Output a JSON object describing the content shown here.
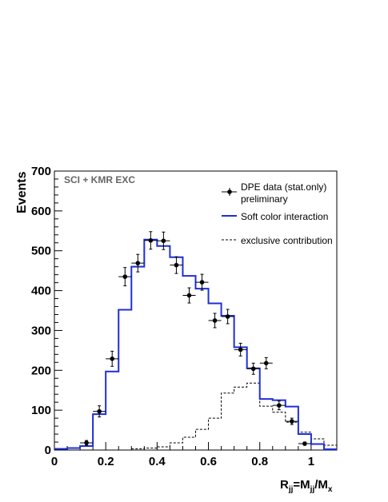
{
  "chart_data": {
    "type": "histogram",
    "title": "",
    "ylabel": "Events",
    "xlabel": {
      "main": "R",
      "main_sub": "jj",
      "eq": "=M",
      "eq_sub": "jj",
      "slash": "/M",
      "slash_sub": "x"
    },
    "xlim": [
      0,
      1.1
    ],
    "ylim": [
      0,
      700
    ],
    "x_ticks": [
      0,
      0.2,
      0.4,
      0.6,
      0.8,
      1
    ],
    "x_tick_labels": [
      "0",
      "0.2",
      "0.4",
      "0.6",
      "0.8",
      "1"
    ],
    "y_ticks": [
      0,
      100,
      200,
      300,
      400,
      500,
      600,
      700
    ],
    "y_tick_labels": [
      "0",
      "100",
      "200",
      "300",
      "400",
      "500",
      "600",
      "700"
    ],
    "annotation": "SCI + KMR EXC",
    "legend": {
      "placement": "top-right",
      "entries": [
        {
          "label": "DPE data (stat.only)",
          "label2": "preliminary",
          "style": "marker"
        },
        {
          "label": "Soft color interaction",
          "style": "line"
        },
        {
          "label": "exclusive contribution",
          "style": "dashed"
        }
      ]
    },
    "bin_edges": [
      0,
      0.05,
      0.1,
      0.15,
      0.2,
      0.25,
      0.3,
      0.35,
      0.4,
      0.45,
      0.5,
      0.55,
      0.6,
      0.65,
      0.7,
      0.75,
      0.8,
      0.85,
      0.9,
      0.95,
      1.0,
      1.05,
      1.1
    ],
    "series": [
      {
        "name": "Soft color interaction",
        "style": "step",
        "color": "#1f2fd6",
        "values": [
          3,
          5,
          10,
          90,
          197,
          352,
          460,
          528,
          512,
          484,
          437,
          405,
          368,
          337,
          258,
          205,
          128,
          125,
          109,
          40,
          15,
          2
        ]
      },
      {
        "name": "exclusive contribution",
        "style": "dashed-step",
        "color": "#000000",
        "values": [
          0,
          0,
          0,
          0,
          0,
          0,
          3,
          5,
          8,
          18,
          32,
          52,
          80,
          143,
          158,
          168,
          110,
          95,
          70,
          45,
          28,
          12
        ]
      },
      {
        "name": "DPE data (stat.only)",
        "style": "points",
        "color": "#000000",
        "x": [
          0.125,
          0.175,
          0.225,
          0.275,
          0.325,
          0.375,
          0.425,
          0.475,
          0.525,
          0.575,
          0.625,
          0.675,
          0.725,
          0.775,
          0.825,
          0.875,
          0.925,
          0.975
        ],
        "y": [
          18,
          97,
          229,
          435,
          469,
          526,
          525,
          464,
          388,
          421,
          325,
          335,
          252,
          204,
          218,
          112,
          72,
          16
        ],
        "yerr": [
          6,
          14,
          19,
          23,
          22,
          22,
          22,
          21,
          19,
          20,
          18,
          18,
          16,
          14,
          14,
          11,
          8,
          4
        ]
      }
    ]
  }
}
